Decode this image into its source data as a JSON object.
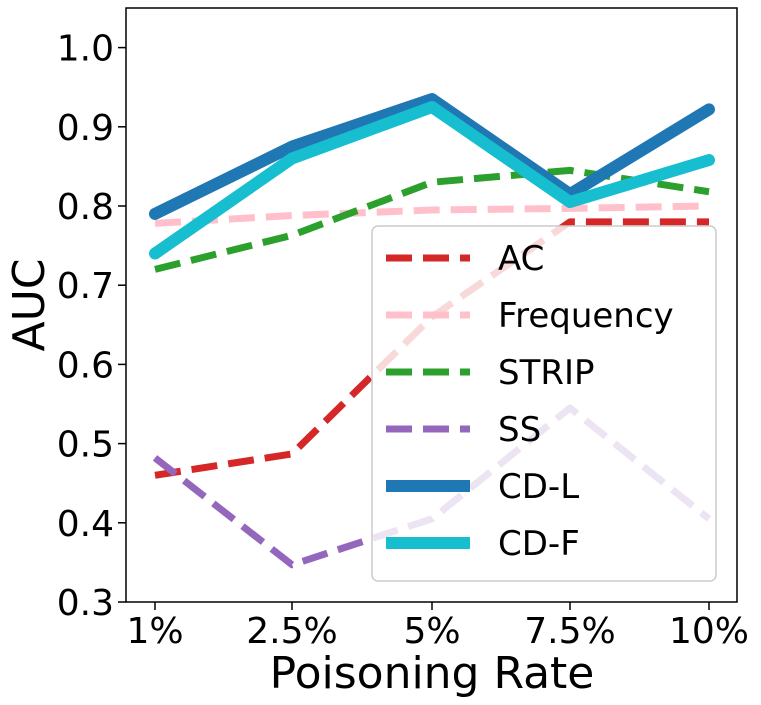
{
  "chart_data": {
    "type": "line",
    "xlabel": "Poisoning Rate",
    "ylabel": "AUC",
    "categories": [
      "1%",
      "2.5%",
      "5%",
      "7.5%",
      "10%"
    ],
    "ylim": [
      0.3,
      1.05
    ],
    "yticks": [
      "0.3",
      "0.4",
      "0.5",
      "0.6",
      "0.7",
      "0.8",
      "0.9",
      "1.0"
    ],
    "grid": false,
    "legend_position": "lower-right",
    "series": [
      {
        "name": "AC",
        "values": [
          0.46,
          0.487,
          0.66,
          0.78,
          0.78
        ],
        "color": "#d62728",
        "style": "dashed"
      },
      {
        "name": "Frequency",
        "values": [
          0.778,
          0.788,
          0.795,
          0.797,
          0.8
        ],
        "color": "#ffc0cb",
        "style": "dashed"
      },
      {
        "name": "STRIP",
        "values": [
          0.72,
          0.763,
          0.83,
          0.845,
          0.818
        ],
        "color": "#2ca02c",
        "style": "dashed"
      },
      {
        "name": "SS",
        "values": [
          0.482,
          0.347,
          0.405,
          0.545,
          0.405
        ],
        "color": "#9467bd",
        "style": "dashed"
      },
      {
        "name": "CD-L",
        "values": [
          0.79,
          0.875,
          0.935,
          0.815,
          0.922
        ],
        "color": "#1f77b4",
        "style": "solid"
      },
      {
        "name": "CD-F",
        "values": [
          0.74,
          0.86,
          0.925,
          0.805,
          0.858
        ],
        "color": "#17becf",
        "style": "solid"
      }
    ]
  }
}
